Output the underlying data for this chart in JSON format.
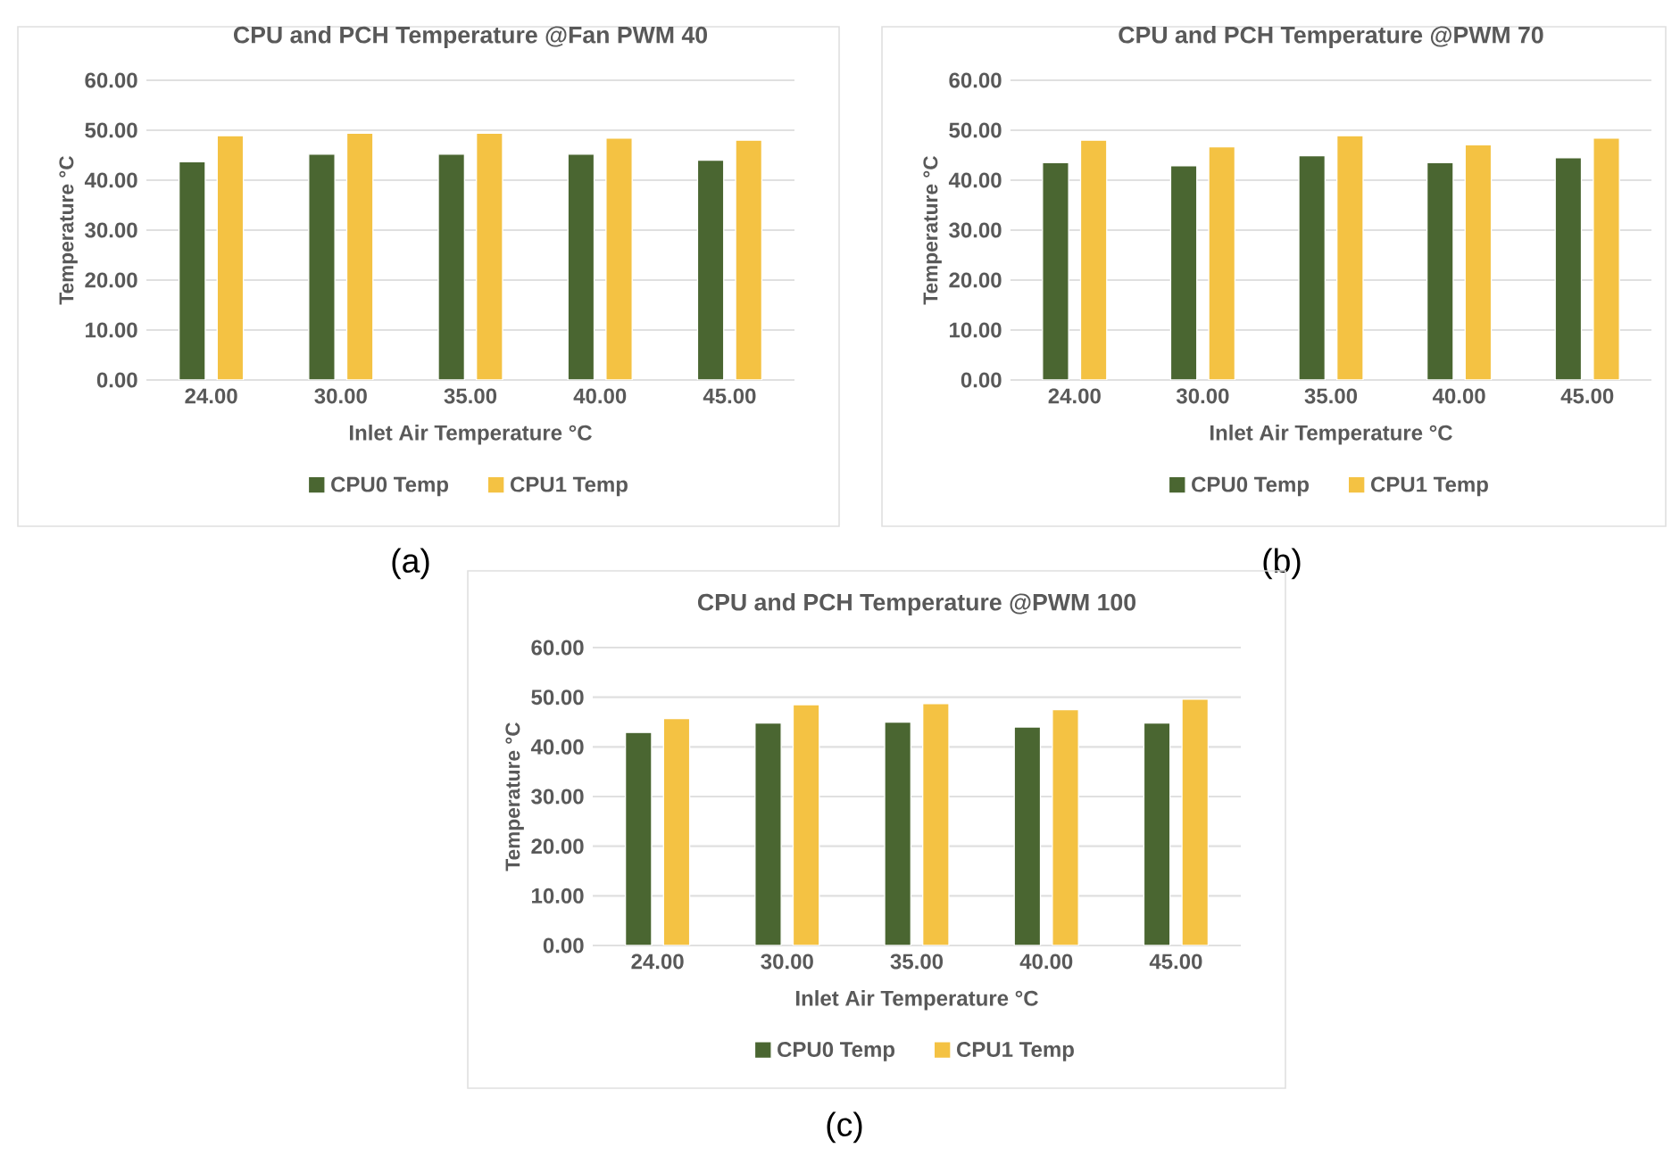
{
  "chart_data": [
    {
      "type": "bar",
      "title": "CPU and PCH Temperature @Fan PWM 40",
      "xlabel": "Inlet Air Temperature °C",
      "ylabel": "Temperature °C",
      "categories": [
        "24.00",
        "30.00",
        "35.00",
        "40.00",
        "45.00"
      ],
      "series": [
        {
          "name": "CPU0 Temp",
          "color": "#4a6631",
          "values": [
            43.7,
            45.2,
            45.2,
            45.2,
            44.0
          ]
        },
        {
          "name": "CPU1 Temp",
          "color": "#f4c243",
          "values": [
            48.9,
            49.4,
            49.4,
            48.4,
            48.0
          ]
        }
      ],
      "ylim": [
        0,
        60
      ],
      "yticks": [
        {
          "value": 0,
          "label": "0.00"
        },
        {
          "value": 10,
          "label": "10.00"
        },
        {
          "value": 20,
          "label": "20.00"
        },
        {
          "value": 30,
          "label": "30.00"
        },
        {
          "value": 40,
          "label": "40.00"
        },
        {
          "value": 50,
          "label": "50.00"
        },
        {
          "value": 60,
          "label": "60.00"
        }
      ],
      "grid": "y",
      "legend": "bottom",
      "annotations": [
        "(a)"
      ]
    },
    {
      "type": "bar",
      "title": "CPU and PCH Temperature @PWM 70",
      "xlabel": "Inlet Air Temperature °C",
      "ylabel": "Temperature °C",
      "categories": [
        "24.00",
        "30.00",
        "35.00",
        "40.00",
        "45.00"
      ],
      "series": [
        {
          "name": "CPU0 Temp",
          "color": "#4a6631",
          "values": [
            43.5,
            42.9,
            44.9,
            43.5,
            44.5
          ]
        },
        {
          "name": "CPU1 Temp",
          "color": "#f4c243",
          "values": [
            48.0,
            46.7,
            48.9,
            47.1,
            48.4
          ]
        }
      ],
      "ylim": [
        0,
        60
      ],
      "yticks": [
        {
          "value": 0,
          "label": "0.00"
        },
        {
          "value": 10,
          "label": "10.00"
        },
        {
          "value": 20,
          "label": "20.00"
        },
        {
          "value": 30,
          "label": "30.00"
        },
        {
          "value": 40,
          "label": "40.00"
        },
        {
          "value": 50,
          "label": "50.00"
        },
        {
          "value": 60,
          "label": "60.00"
        }
      ],
      "grid": "y",
      "legend": "bottom",
      "annotations": [
        "(b)"
      ]
    },
    {
      "type": "bar",
      "title": "CPU and PCH Temperature @PWM 100",
      "xlabel": "Inlet Air Temperature °C",
      "ylabel": "Temperature °C",
      "categories": [
        "24.00",
        "30.00",
        "35.00",
        "40.00",
        "45.00"
      ],
      "series": [
        {
          "name": "CPU0 Temp",
          "color": "#4a6631",
          "values": [
            42.9,
            44.8,
            45.0,
            44.0,
            44.8
          ]
        },
        {
          "name": "CPU1 Temp",
          "color": "#f4c243",
          "values": [
            45.7,
            48.5,
            48.7,
            47.5,
            49.6
          ]
        }
      ],
      "ylim": [
        0,
        60
      ],
      "yticks": [
        {
          "value": 0,
          "label": "0.00"
        },
        {
          "value": 10,
          "label": "10.00"
        },
        {
          "value": 20,
          "label": "20.00"
        },
        {
          "value": 30,
          "label": "30.00"
        },
        {
          "value": 40,
          "label": "40.00"
        },
        {
          "value": 50,
          "label": "50.00"
        },
        {
          "value": 60,
          "label": "60.00"
        }
      ],
      "grid": "y",
      "legend": "bottom",
      "annotations": [
        "(c)"
      ]
    }
  ]
}
